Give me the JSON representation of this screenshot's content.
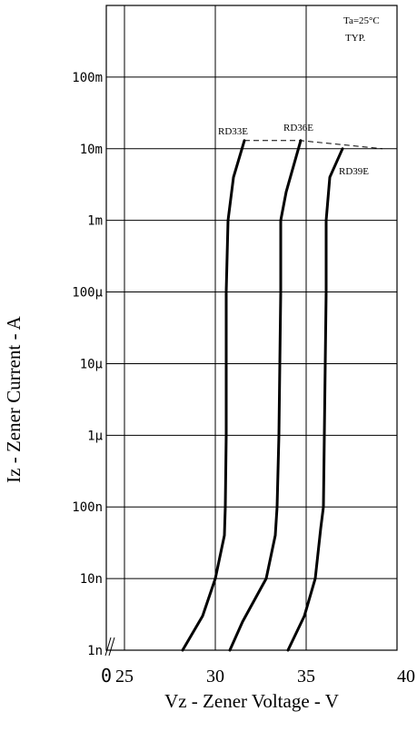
{
  "chart_data": {
    "type": "line",
    "xlabel": "Vz  - Zener Voltage - V",
    "ylabel": "Iz - Zener Current - A",
    "annotation_ta": "Ta=25°C",
    "annotation_typ": "TYP.",
    "x_axis": {
      "min": 24,
      "max": 40,
      "break_label": "0",
      "tick_labels": [
        {
          "value": 25,
          "label": "25"
        },
        {
          "value": 30,
          "label": "30"
        },
        {
          "value": 35,
          "label": "35"
        },
        {
          "value": 40,
          "label": "40"
        }
      ]
    },
    "y_axis": {
      "scale": "log",
      "range": [
        1e-09,
        1
      ],
      "tick_labels": [
        {
          "value": 1e-09,
          "label": "1n"
        },
        {
          "value": 1e-08,
          "label": "10n"
        },
        {
          "value": 1e-07,
          "label": "100n"
        },
        {
          "value": 1e-06,
          "label": "1μ"
        },
        {
          "value": 1e-05,
          "label": "10μ"
        },
        {
          "value": 0.0001,
          "label": "100μ"
        },
        {
          "value": 0.001,
          "label": "1m"
        },
        {
          "value": 0.01,
          "label": "10m"
        },
        {
          "value": 0.1,
          "label": "100m"
        }
      ]
    },
    "grid": true,
    "series": [
      {
        "name": "RD33E",
        "points": [
          [
            28.2,
            1e-09
          ],
          [
            29.3,
            3e-09
          ],
          [
            30.0,
            1e-08
          ],
          [
            30.5,
            4e-08
          ],
          [
            30.55,
            1e-07
          ],
          [
            30.6,
            1e-06
          ],
          [
            30.6,
            0.0001
          ],
          [
            30.7,
            0.001
          ],
          [
            31.0,
            0.004
          ],
          [
            31.6,
            0.013
          ]
        ]
      },
      {
        "name": "RD36E",
        "points": [
          [
            30.8,
            1e-09
          ],
          [
            31.5,
            2.5e-09
          ],
          [
            32.8,
            1e-08
          ],
          [
            33.3,
            4e-08
          ],
          [
            33.4,
            1e-07
          ],
          [
            33.5,
            1e-06
          ],
          [
            33.6,
            0.0001
          ],
          [
            33.6,
            0.001
          ],
          [
            33.9,
            0.0025
          ],
          [
            34.7,
            0.013
          ]
        ]
      },
      {
        "name": "RD39E",
        "points": [
          [
            34.0,
            1e-09
          ],
          [
            34.9,
            3e-09
          ],
          [
            35.5,
            1e-08
          ],
          [
            35.8,
            5e-08
          ],
          [
            35.95,
            1e-07
          ],
          [
            36.0,
            1e-06
          ],
          [
            36.1,
            0.0001
          ],
          [
            36.1,
            0.001
          ],
          [
            36.3,
            0.004
          ],
          [
            37.0,
            0.01
          ]
        ]
      }
    ],
    "breakdown_line": [
      [
        31.6,
        0.013
      ],
      [
        34.7,
        0.013
      ],
      [
        39.2,
        0.01
      ]
    ]
  }
}
